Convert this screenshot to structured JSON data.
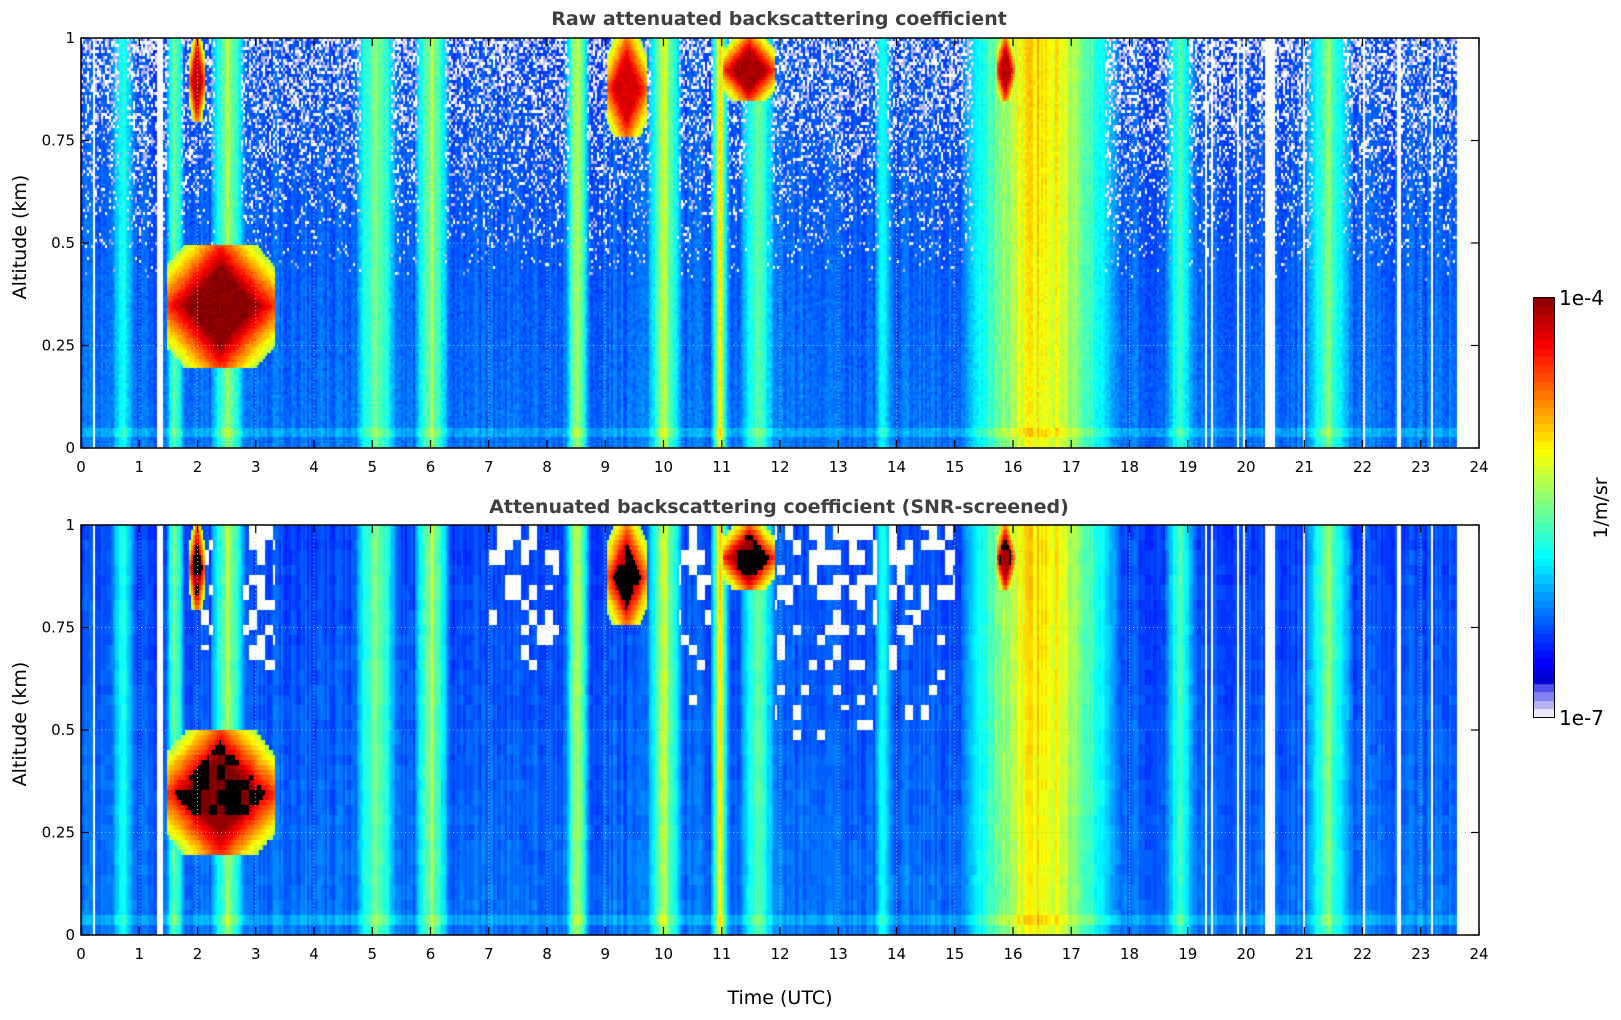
{
  "chart_data": [
    {
      "type": "heatmap",
      "title": "Raw attenuated backscattering coefficient",
      "xlabel": "",
      "ylabel": "Altitude (km)",
      "xlim": [
        0,
        24
      ],
      "ylim": [
        0,
        1
      ],
      "x_ticks": [
        "0",
        "1",
        "2",
        "3",
        "4",
        "5",
        "6",
        "7",
        "8",
        "9",
        "10",
        "11",
        "12",
        "13",
        "14",
        "15",
        "16",
        "17",
        "18",
        "19",
        "20",
        "21",
        "22",
        "23",
        "24"
      ],
      "y_ticks": [
        "0",
        "0.25",
        "0.5",
        "0.75",
        "1"
      ],
      "grid": true,
      "screened": false
    },
    {
      "type": "heatmap",
      "title": "Attenuated backscattering coefficient (SNR-screened)",
      "xlabel": "Time (UTC)",
      "ylabel": "Altitude (km)",
      "xlim": [
        0,
        24
      ],
      "ylim": [
        0,
        1
      ],
      "x_ticks": [
        "0",
        "1",
        "2",
        "3",
        "4",
        "5",
        "6",
        "7",
        "8",
        "9",
        "10",
        "11",
        "12",
        "13",
        "14",
        "15",
        "16",
        "17",
        "18",
        "19",
        "20",
        "21",
        "22",
        "23",
        "24"
      ],
      "y_ticks": [
        "0",
        "0.25",
        "0.5",
        "0.75",
        "1"
      ],
      "grid": true,
      "screened": true
    }
  ],
  "shared": {
    "data_end_hour": 23.6,
    "missing_gaps_hours": [
      [
        1.3,
        1.38
      ],
      [
        20.32,
        20.48
      ],
      [
        22.57,
        22.63
      ]
    ],
    "thin_gaps_hours": [
      0.2,
      19.3,
      19.4,
      19.85,
      19.95,
      20.97,
      22.0,
      23.18
    ],
    "plumes": [
      {
        "t0": 0.5,
        "t1": 0.9,
        "level": 0.45
      },
      {
        "t0": 1.45,
        "t1": 1.75,
        "level": 0.55
      },
      {
        "t0": 2.2,
        "t1": 2.8,
        "level": 0.6
      },
      {
        "t0": 4.7,
        "t1": 5.4,
        "level": 0.6
      },
      {
        "t0": 5.7,
        "t1": 6.3,
        "level": 0.62
      },
      {
        "t0": 8.3,
        "t1": 8.7,
        "level": 0.65
      },
      {
        "t0": 9.7,
        "t1": 10.3,
        "level": 0.62
      },
      {
        "t0": 10.8,
        "t1": 11.1,
        "level": 0.7
      },
      {
        "t0": 11.3,
        "t1": 11.9,
        "level": 0.55
      },
      {
        "t0": 13.6,
        "t1": 13.9,
        "level": 0.45
      },
      {
        "t0": 15.1,
        "t1": 17.8,
        "level": 0.78
      },
      {
        "t0": 18.6,
        "t1": 19.1,
        "level": 0.5
      },
      {
        "t0": 21.0,
        "t1": 21.8,
        "level": 0.55
      }
    ],
    "clouds": [
      {
        "t0": 1.45,
        "t1": 3.3,
        "z0": 0.2,
        "z1": 0.5,
        "level": 1.0
      },
      {
        "t0": 1.85,
        "t1": 2.1,
        "z0": 0.8,
        "z1": 1.0,
        "level": 0.95
      },
      {
        "t0": 9.0,
        "t1": 9.7,
        "z0": 0.76,
        "z1": 1.0,
        "level": 0.92
      },
      {
        "t0": 11.0,
        "t1": 11.9,
        "z0": 0.85,
        "z1": 1.0,
        "level": 0.97
      },
      {
        "t0": 15.7,
        "t1": 16.0,
        "z0": 0.85,
        "z1": 1.0,
        "level": 0.95
      }
    ]
  },
  "colorbar": {
    "label": "1/m/sr",
    "max_label": "1e-4",
    "min_label": "1e-7",
    "vmin": 1e-07,
    "vmax": 0.0001,
    "scale": "log",
    "colormap": "jet"
  }
}
